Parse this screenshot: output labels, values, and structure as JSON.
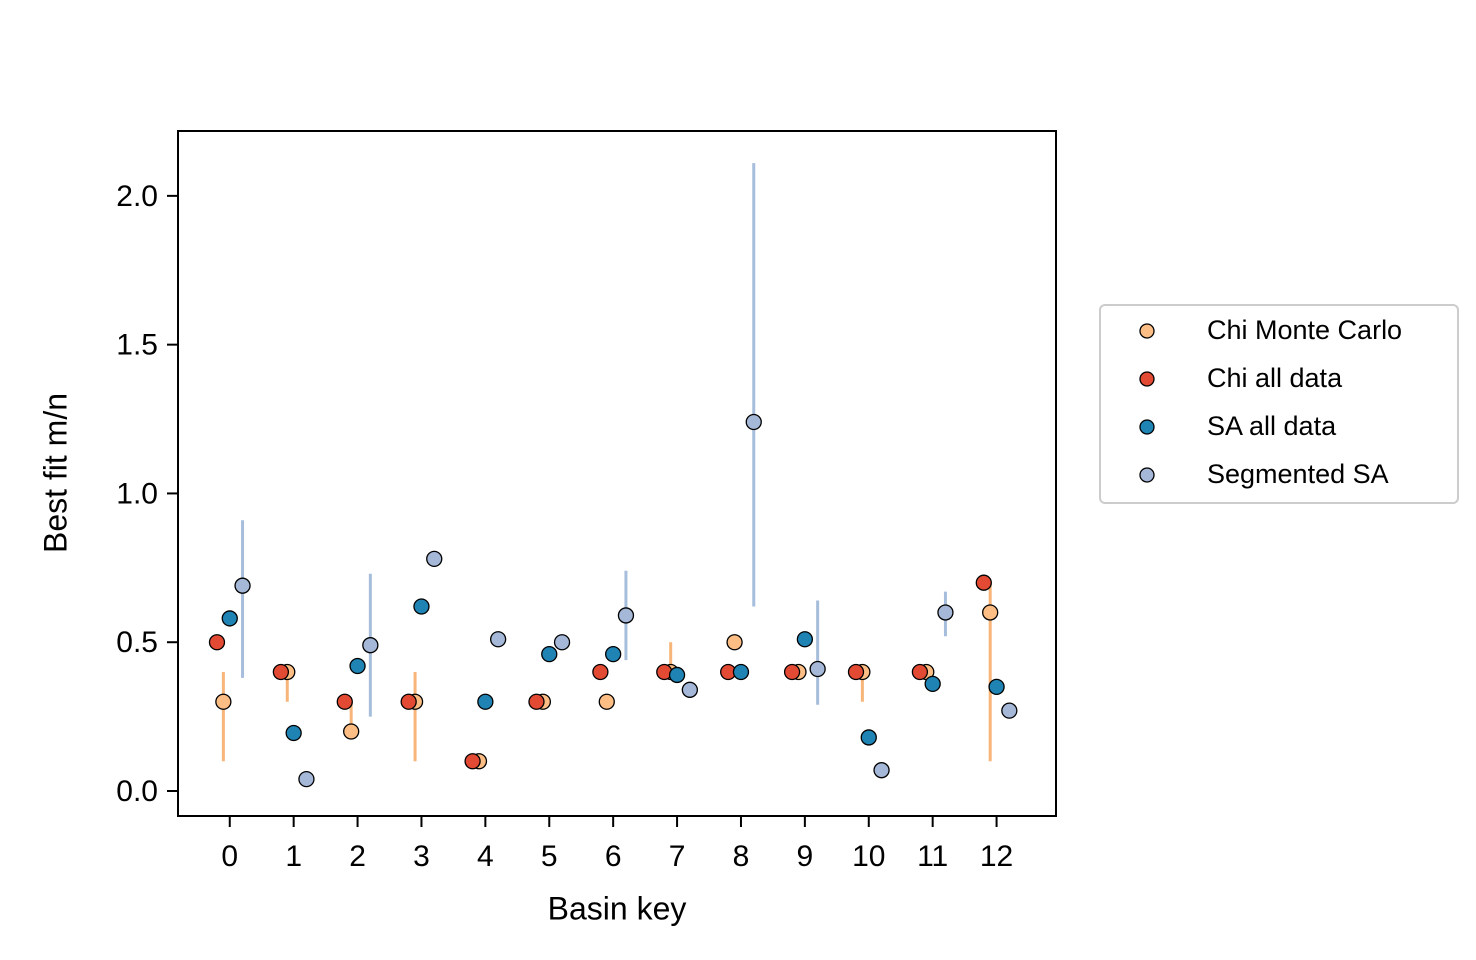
{
  "chart_data": {
    "type": "scatter",
    "xlabel": "Basin key",
    "ylabel": "Best fit m/n",
    "xlim": [
      -0.81,
      12.93
    ],
    "ylim": [
      -0.084,
      2.218
    ],
    "xticks": [
      0,
      1,
      2,
      3,
      4,
      5,
      6,
      7,
      8,
      9,
      10,
      11,
      12
    ],
    "yticks": [
      {
        "value": 0,
        "label": "0.0"
      },
      0.5,
      {
        "value": 1,
        "label": "1.0"
      },
      1.5,
      {
        "value": 2,
        "label": "2.0"
      }
    ],
    "grid": false,
    "legend": "right",
    "series": [
      {
        "name": "Chi Monte Carlo",
        "color": "#fdbe85",
        "error_color": "#f7b57a",
        "x": [
          -0.1,
          0.9,
          1.9,
          2.9,
          3.9,
          4.9,
          5.9,
          6.9,
          7.9,
          8.9,
          9.9,
          10.9,
          11.9
        ],
        "values": [
          0.3,
          0.4,
          0.2,
          0.3,
          0.1,
          0.3,
          0.3,
          0.4,
          0.5,
          0.4,
          0.4,
          0.4,
          0.6
        ],
        "lower": [
          0.1,
          0.3,
          0.2,
          0.1,
          null,
          null,
          null,
          0.4,
          null,
          null,
          0.3,
          null,
          0.1
        ],
        "upper": [
          0.4,
          0.4,
          0.3,
          0.4,
          null,
          null,
          null,
          0.5,
          null,
          null,
          0.4,
          null,
          0.7
        ]
      },
      {
        "name": "Chi all data",
        "color": "#e34a33",
        "x": [
          -0.2,
          0.8,
          1.8,
          2.8,
          3.8,
          4.8,
          5.8,
          6.8,
          7.8,
          8.8,
          9.8,
          10.8,
          11.8
        ],
        "values": [
          0.5,
          0.4,
          0.3,
          0.3,
          0.1,
          0.3,
          0.4,
          0.4,
          0.4,
          0.4,
          0.4,
          0.4,
          0.7
        ]
      },
      {
        "name": "SA all data",
        "color": "#1f83b4",
        "x": [
          0,
          1,
          2,
          3,
          4,
          5,
          6,
          7,
          8,
          9,
          10,
          11,
          12
        ],
        "values": [
          0.58,
          0.195,
          0.42,
          0.62,
          0.3,
          0.46,
          0.46,
          0.39,
          0.4,
          0.51,
          0.18,
          0.36,
          0.35
        ]
      },
      {
        "name": "Segmented SA",
        "color": "#a6b8d8",
        "error_color": "#a6bddb",
        "x": [
          0.2,
          1.2,
          2.2,
          3.2,
          4.2,
          5.2,
          6.2,
          7.2,
          8.2,
          9.2,
          10.2,
          11.2,
          12.2
        ],
        "values": [
          0.69,
          0.04,
          0.49,
          0.78,
          0.51,
          0.5,
          0.59,
          0.34,
          1.24,
          0.41,
          0.07,
          0.6,
          0.27
        ],
        "lower": [
          0.38,
          null,
          0.25,
          null,
          null,
          null,
          0.44,
          null,
          0.62,
          0.29,
          null,
          0.52,
          null
        ],
        "upper": [
          0.91,
          null,
          0.73,
          null,
          null,
          null,
          0.74,
          null,
          2.11,
          0.64,
          null,
          0.67,
          null
        ]
      }
    ]
  }
}
